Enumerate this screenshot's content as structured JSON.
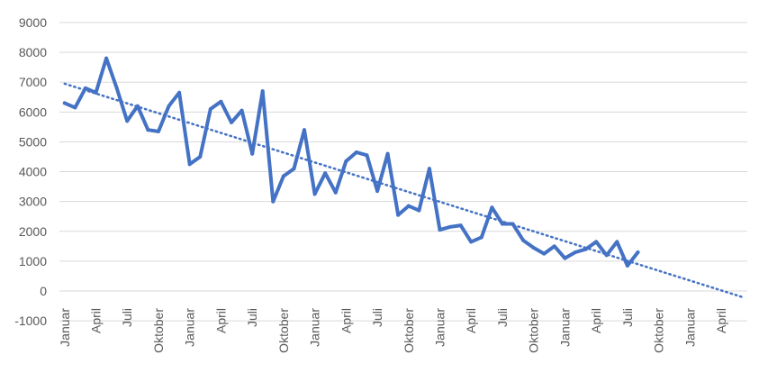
{
  "chart_data": {
    "type": "line",
    "title": "",
    "xlabel": "",
    "ylabel": "",
    "ylim": [
      -1000,
      9000
    ],
    "yticks": [
      -1000,
      0,
      1000,
      2000,
      3000,
      4000,
      5000,
      6000,
      7000,
      8000,
      9000
    ],
    "grid": true,
    "legend": "none",
    "colors": {
      "series": "#4472C4",
      "grid": "#d9d9d9",
      "tick_text": "#595959"
    },
    "x_axis_months": 66,
    "tick_labels": [
      "Januar",
      "April",
      "Juli",
      "Oktober",
      "Januar",
      "April",
      "Juli",
      "Oktober",
      "Januar",
      "April",
      "Juli",
      "Oktober",
      "Januar",
      "April",
      "Juli",
      "Oktober",
      "Januar",
      "April",
      "Juli",
      "Oktober",
      "Januar",
      "April"
    ],
    "series": [
      {
        "values": [
          6300,
          6150,
          6800,
          6650,
          7800,
          6800,
          5700,
          6200,
          5400,
          5350,
          6200,
          6650,
          4250,
          4500,
          6100,
          6350,
          5650,
          6050,
          4600,
          6700,
          3000,
          3850,
          4100,
          5400,
          3250,
          3950,
          3300,
          4350,
          4650,
          4550,
          3350,
          4600,
          2550,
          2850,
          2700,
          4100,
          2050,
          2150,
          2200,
          1650,
          1800,
          2800,
          2250,
          2250,
          1700,
          1450,
          1250,
          1500,
          1100,
          1300,
          1400,
          1650,
          1200,
          1650,
          850,
          1300
        ]
      }
    ],
    "trendline": {
      "style": "dotted",
      "start": 6950,
      "end": -200
    }
  }
}
